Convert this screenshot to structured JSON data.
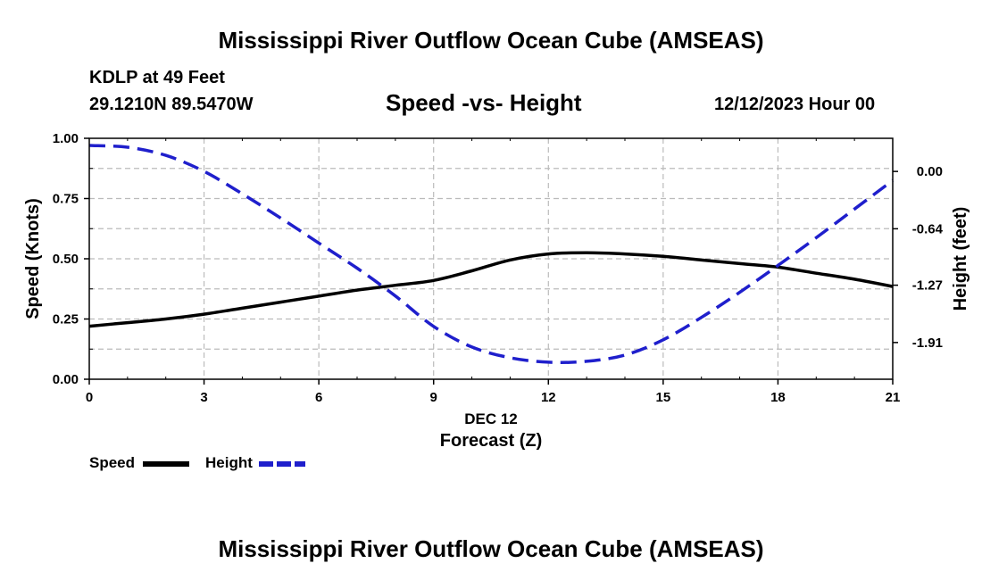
{
  "page": {
    "title": "Mississippi River Outflow Ocean Cube (AMSEAS)",
    "station_line": "KDLP at 49 Feet",
    "coords_line": "29.1210N  89.5470W",
    "date_line": "12/12/2023 Hour 00",
    "footer_title": "Mississippi River Outflow Ocean Cube (AMSEAS)"
  },
  "chart_data": {
    "type": "line",
    "title": "Speed -vs- Height",
    "xlabel": "Forecast (Z)",
    "x_date_label": "DEC 12",
    "xlim": [
      0,
      21
    ],
    "x_ticks": [
      0,
      3,
      6,
      9,
      12,
      15,
      18,
      21
    ],
    "x_tick_labels": [
      "0",
      "3",
      "6",
      "9",
      "12",
      "15",
      "18",
      "21"
    ],
    "grid": true,
    "legend_placement": "bottom-left",
    "left_axis": {
      "label": "Speed (Knots)",
      "range": [
        0,
        1
      ],
      "ticks": [
        0,
        0.25,
        0.5,
        0.75,
        1.0
      ],
      "tick_labels": [
        "0.00",
        "0.25",
        "0.50",
        "0.75",
        "1.00"
      ]
    },
    "right_axis": {
      "label": "Height (feet)",
      "range": [
        -2.32,
        0.37
      ],
      "ticks": [
        0.0,
        -0.64,
        -1.27,
        -1.91
      ],
      "tick_labels": [
        "0.00",
        "-0.64",
        "-1.27",
        "-1.91"
      ]
    },
    "series": [
      {
        "name": "Speed",
        "axis": "left",
        "color": "#000000",
        "style": "solid",
        "x": [
          0,
          1,
          2,
          3,
          4,
          5,
          6,
          7,
          8,
          9,
          10,
          11,
          12,
          13,
          14,
          15,
          16,
          17,
          18,
          19,
          20,
          21
        ],
        "values": [
          0.22,
          0.235,
          0.25,
          0.27,
          0.295,
          0.32,
          0.345,
          0.37,
          0.39,
          0.41,
          0.45,
          0.495,
          0.52,
          0.525,
          0.52,
          0.51,
          0.495,
          0.48,
          0.465,
          0.44,
          0.415,
          0.385
        ]
      },
      {
        "name": "Height",
        "axis": "right",
        "color": "#1f1fcc",
        "style": "dashed",
        "x": [
          0,
          1,
          2,
          3,
          4,
          5,
          6,
          7,
          8,
          9,
          10,
          11,
          12,
          13,
          14,
          15,
          16,
          17,
          18,
          19,
          20,
          21
        ],
        "values": [
          0.29,
          0.27,
          0.18,
          0.0,
          -0.25,
          -0.52,
          -0.8,
          -1.08,
          -1.39,
          -1.73,
          -1.96,
          -2.08,
          -2.13,
          -2.12,
          -2.05,
          -1.88,
          -1.63,
          -1.35,
          -1.05,
          -0.74,
          -0.42,
          -0.1
        ]
      }
    ]
  }
}
